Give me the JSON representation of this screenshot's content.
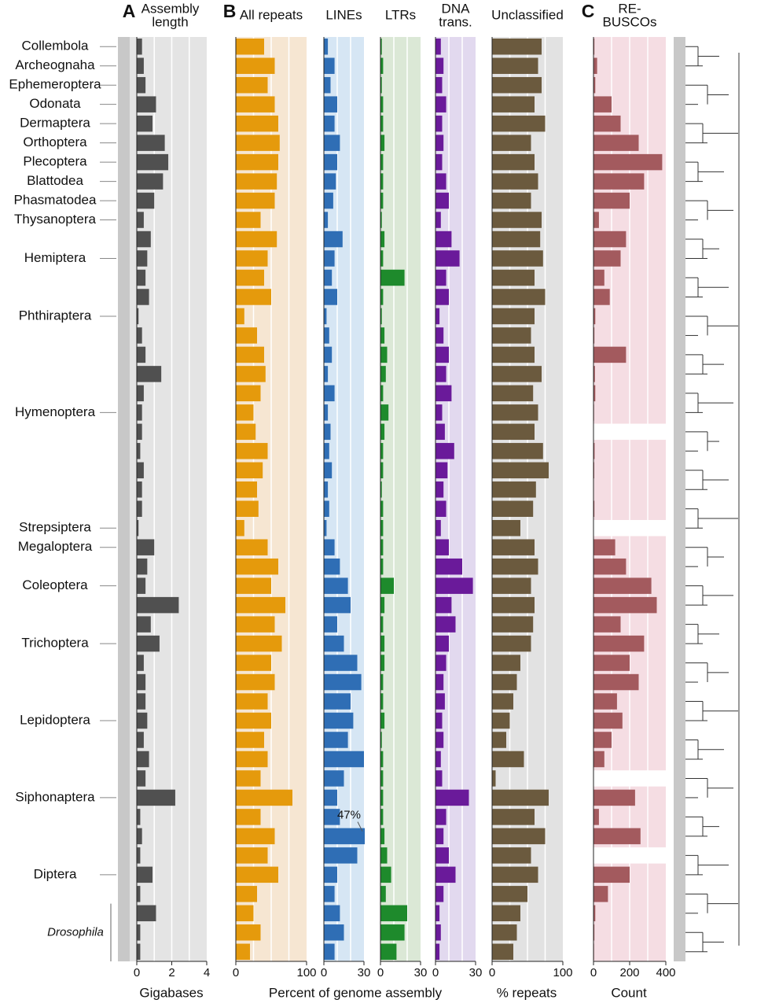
{
  "chart_data": [
    {
      "type": "barh",
      "panel_label": "A",
      "title": [
        "Assembly",
        "length"
      ],
      "xlabel": "Gigabases",
      "color": "#505050",
      "panel_bg": "#e4e4e4",
      "xlim": [
        0,
        4
      ],
      "xticks": [
        0,
        2,
        4
      ],
      "gridlines": [
        1,
        2,
        3
      ],
      "categories": [
        "Collembola",
        "Archeognaha",
        "Ephemeroptera",
        "Odonata",
        "Dermaptera",
        "Orthoptera",
        "Plecoptera",
        "Blattodea",
        "Phasmatodea",
        "Thysanoptera",
        null,
        "Hemiptera",
        null,
        null,
        "Phthiraptera",
        null,
        null,
        null,
        null,
        "Hymenoptera",
        null,
        null,
        null,
        null,
        null,
        "Strepsiptera",
        "Megaloptera",
        null,
        "Coleoptera",
        null,
        null,
        "Trichoptera",
        null,
        null,
        null,
        "Lepidoptera",
        null,
        null,
        null,
        "Siphonaptera",
        null,
        null,
        null,
        "Diptera",
        null,
        null,
        null,
        null
      ],
      "annotation": "Drosophila",
      "values": [
        0.3,
        0.4,
        0.5,
        1.1,
        0.9,
        1.6,
        1.8,
        1.5,
        1.0,
        0.4,
        0.8,
        0.6,
        0.5,
        0.7,
        0.1,
        0.3,
        0.5,
        1.4,
        0.4,
        0.3,
        0.3,
        0.2,
        0.4,
        0.3,
        0.3,
        0.1,
        1.0,
        0.6,
        0.5,
        2.4,
        0.8,
        1.3,
        0.4,
        0.5,
        0.5,
        0.6,
        0.4,
        0.7,
        0.5,
        2.2,
        0.2,
        0.3,
        0.2,
        0.9,
        0.2,
        1.1,
        0.2,
        0.2
      ]
    },
    {
      "type": "barh",
      "panel_label": "B",
      "title": [
        "All repeats"
      ],
      "xlabel": "Percent of genome assembly",
      "color": "#e59a0c",
      "panel_bg": "#f6e6d2",
      "xlim": [
        0,
        100
      ],
      "xticks": [
        0,
        100
      ],
      "gridlines": [
        25,
        50,
        75
      ],
      "values": [
        40,
        55,
        45,
        55,
        60,
        62,
        60,
        58,
        55,
        35,
        58,
        45,
        40,
        50,
        12,
        30,
        40,
        42,
        35,
        25,
        28,
        45,
        38,
        30,
        32,
        12,
        45,
        60,
        50,
        70,
        55,
        65,
        50,
        55,
        45,
        50,
        40,
        45,
        35,
        80,
        35,
        55,
        45,
        60,
        30,
        25,
        35,
        20
      ]
    },
    {
      "type": "barh",
      "title": [
        "LINEs"
      ],
      "color": "#2f6eb5",
      "panel_bg": "#d6e6f4",
      "xlim": [
        0,
        30
      ],
      "xticks": [
        0,
        30
      ],
      "gridlines": [
        10,
        20
      ],
      "values": [
        3,
        8,
        5,
        10,
        8,
        12,
        10,
        9,
        7,
        3,
        14,
        8,
        6,
        10,
        2,
        4,
        6,
        3,
        8,
        3,
        5,
        4,
        6,
        3,
        4,
        2,
        8,
        12,
        18,
        20,
        10,
        15,
        25,
        28,
        20,
        22,
        18,
        30,
        15,
        10,
        12,
        47,
        25,
        10,
        8,
        12,
        15,
        8
      ],
      "value_labels": [
        null,
        null,
        null,
        null,
        null,
        null,
        null,
        null,
        null,
        null,
        null,
        null,
        null,
        null,
        null,
        null,
        null,
        null,
        null,
        null,
        null,
        null,
        null,
        null,
        null,
        null,
        null,
        null,
        null,
        null,
        null,
        null,
        null,
        null,
        null,
        null,
        null,
        null,
        null,
        null,
        null,
        "47%",
        null,
        null,
        null,
        null,
        null,
        null
      ]
    },
    {
      "type": "barh",
      "title": [
        "LTRs"
      ],
      "color": "#1e8a2c",
      "panel_bg": "#dbe8d6",
      "xlim": [
        0,
        30
      ],
      "xticks": [
        0,
        30
      ],
      "gridlines": [
        10,
        20
      ],
      "values": [
        1,
        2,
        1,
        2,
        2,
        3,
        2,
        2,
        2,
        1,
        3,
        2,
        18,
        2,
        1,
        3,
        5,
        4,
        2,
        6,
        3,
        2,
        2,
        1,
        2,
        2,
        2,
        2,
        10,
        3,
        2,
        3,
        3,
        2,
        2,
        3,
        1,
        2,
        2,
        2,
        2,
        3,
        5,
        8,
        4,
        20,
        18,
        12
      ]
    },
    {
      "type": "barh",
      "title": [
        "DNA",
        "trans."
      ],
      "color": "#6a1a9a",
      "panel_bg": "#e2d9ef",
      "xlim": [
        0,
        30
      ],
      "xticks": [
        0,
        30
      ],
      "gridlines": [
        10,
        20
      ],
      "values": [
        4,
        6,
        5,
        8,
        5,
        6,
        5,
        8,
        10,
        4,
        12,
        18,
        8,
        10,
        3,
        6,
        10,
        8,
        12,
        5,
        7,
        14,
        9,
        6,
        8,
        4,
        10,
        20,
        28,
        12,
        15,
        10,
        8,
        6,
        7,
        5,
        6,
        4,
        5,
        25,
        8,
        6,
        10,
        15,
        6,
        3,
        4,
        3
      ]
    },
    {
      "type": "barh",
      "title": [
        "Unclassified"
      ],
      "xlabel": "% repeats",
      "color": "#6b5a3e",
      "panel_bg": "#e2e2e2",
      "xlim": [
        0,
        100
      ],
      "xticks": [
        0,
        100
      ],
      "gridlines": [
        25,
        50,
        75
      ],
      "values": [
        70,
        65,
        70,
        60,
        75,
        55,
        60,
        65,
        55,
        70,
        68,
        72,
        60,
        75,
        60,
        55,
        60,
        70,
        58,
        65,
        60,
        72,
        80,
        62,
        58,
        40,
        60,
        65,
        55,
        60,
        58,
        55,
        40,
        35,
        30,
        25,
        20,
        45,
        5,
        80,
        60,
        75,
        55,
        65,
        50,
        40,
        35,
        30
      ]
    },
    {
      "type": "barh",
      "panel_label": "C",
      "title": [
        "RE-",
        "BUSCOs"
      ],
      "xlabel": "Count",
      "color": "#a35a5e",
      "panel_bg": "#f5dde3",
      "xlim": [
        0,
        400
      ],
      "xticks": [
        0,
        200,
        400
      ],
      "gridlines": [
        100,
        200,
        300
      ],
      "values": [
        5,
        20,
        10,
        100,
        150,
        250,
        380,
        280,
        200,
        30,
        180,
        150,
        60,
        90,
        10,
        5,
        180,
        8,
        10,
        3,
        null,
        6,
        4,
        2,
        5,
        null,
        120,
        180,
        320,
        350,
        150,
        280,
        200,
        250,
        130,
        160,
        100,
        60,
        null,
        230,
        30,
        260,
        null,
        200,
        80,
        10,
        5,
        3
      ]
    }
  ]
}
